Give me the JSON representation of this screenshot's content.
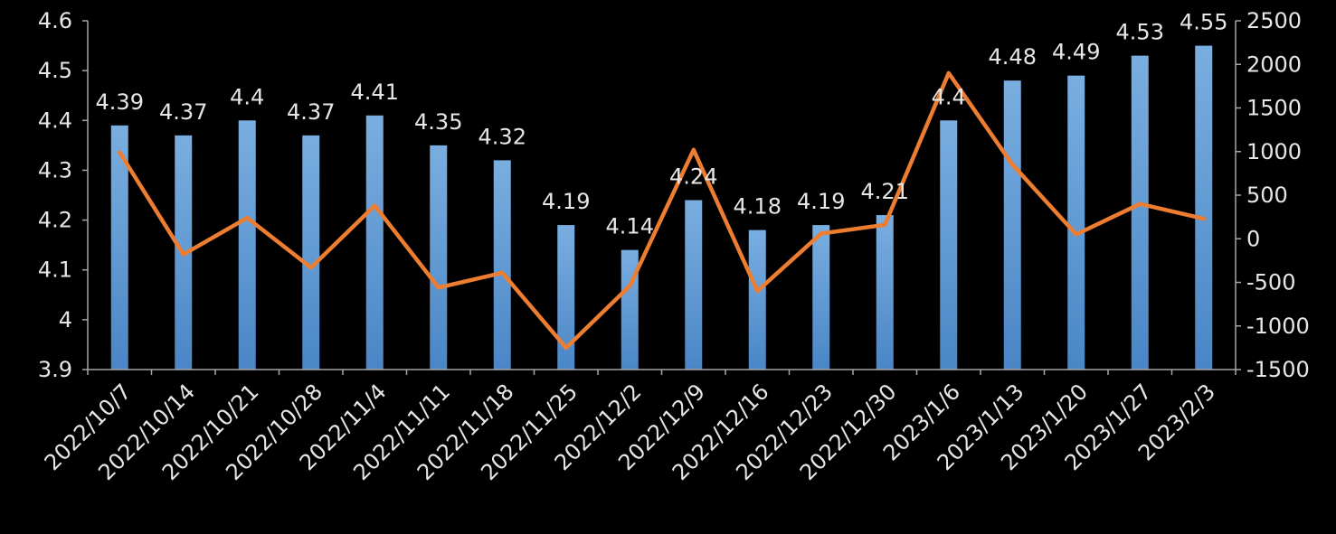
{
  "chart_data": {
    "type": "bar+line",
    "title": "",
    "categories": [
      "2022/10/7",
      "2022/10/14",
      "2022/10/21",
      "2022/10/28",
      "2022/11/4",
      "2022/11/11",
      "2022/11/18",
      "2022/11/25",
      "2022/12/2",
      "2022/12/9",
      "2022/12/16",
      "2022/12/23",
      "2022/12/30",
      "2023/1/6",
      "2023/1/13",
      "2023/1/20",
      "2023/1/27",
      "2023/2/3"
    ],
    "series": [
      {
        "type": "bar",
        "axis": "left",
        "values": [
          4.39,
          4.37,
          4.4,
          4.37,
          4.41,
          4.35,
          4.32,
          4.19,
          4.14,
          4.24,
          4.18,
          4.19,
          4.21,
          4.4,
          4.48,
          4.49,
          4.53,
          4.55
        ],
        "color": "#5b9bd5",
        "data_labels": true
      },
      {
        "type": "line",
        "axis": "right",
        "values": [
          990,
          -180,
          240,
          -330,
          380,
          -560,
          -390,
          -1250,
          -540,
          1020,
          -600,
          60,
          160,
          1900,
          850,
          50,
          400,
          230
        ],
        "color": "#ed7d31",
        "data_labels": false
      }
    ],
    "y_left": {
      "min": 3.9,
      "max": 4.6,
      "ticks": [
        "4.6",
        "4.5",
        "4.4",
        "4.3",
        "4.2",
        "4.1",
        "4",
        "3.9"
      ]
    },
    "y_right": {
      "min": -1500,
      "max": 2500,
      "ticks": [
        "2500",
        "2000",
        "1500",
        "1000",
        "500",
        "0",
        "-500",
        "-1000",
        "-1500"
      ]
    },
    "grid": false,
    "legend": "none",
    "background": "#000000",
    "text_color": "#e6e6e6",
    "axis_color": "#a6a6a6"
  }
}
